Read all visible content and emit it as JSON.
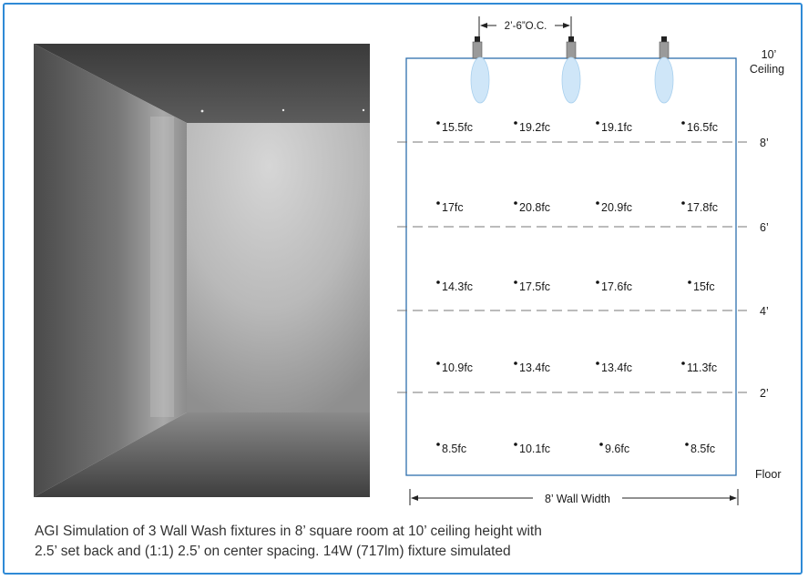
{
  "spacing_label": "2’-6”O.C.",
  "height_labels": [
    "10’",
    "Ceiling",
    "8’",
    "6’",
    "4’",
    "2’",
    "Floor"
  ],
  "width_label": "8’ Wall Width",
  "readings": [
    [
      "15.5fc",
      "19.2fc",
      "19.1fc",
      "16.5fc"
    ],
    [
      "17fc",
      "20.8fc",
      "20.9fc",
      "17.8fc"
    ],
    [
      "14.3fc",
      "17.5fc",
      "17.6fc",
      "15fc"
    ],
    [
      "10.9fc",
      "13.4fc",
      "13.4fc",
      "11.3fc"
    ],
    [
      "8.5fc",
      "10.1fc",
      "9.6fc",
      "8.5fc"
    ]
  ],
  "caption": {
    "line1": "AGI Simulation of 3 Wall Wash fixtures in 8’ square room at 10’ ceiling height with",
    "line2": "2.5’ set back and (1:1) 2.5’ on center spacing. 14W (717lm) fixture simulated"
  },
  "colors": {
    "border": "#2f8ad6",
    "wall_outline": "#2e6fae",
    "beam": "#cfe6f8"
  }
}
